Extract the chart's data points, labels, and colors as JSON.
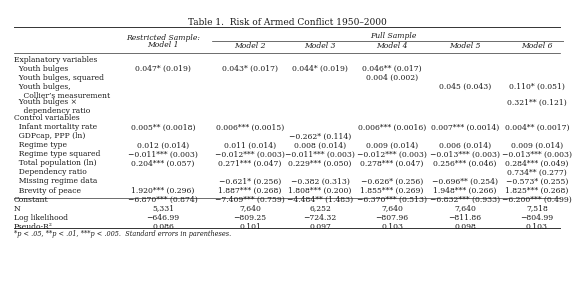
{
  "title": "Table 1.  Risk of Armed Conflict 1950–2000",
  "col_headers_line1": [
    "Restricted Sample:",
    "Full Sample",
    "",
    "",
    "",
    ""
  ],
  "col_headers_line2": [
    "Model 1",
    "Model 2",
    "Model 3",
    "Model 4",
    "Model 5",
    "Model 6"
  ],
  "rows": [
    {
      "label": "Explanatory variables",
      "indent": 0,
      "section": true,
      "values": [
        "",
        "",
        "",
        "",
        "",
        ""
      ]
    },
    {
      "label": "  Youth bulges",
      "indent": 0,
      "section": false,
      "values": [
        "0.047* (0.019)",
        "0.043* (0.017)",
        "0.044* (0.019)",
        "0.046** (0.017)",
        "",
        ""
      ]
    },
    {
      "label": "  Youth bulges, squared",
      "indent": 0,
      "section": false,
      "values": [
        "",
        "",
        "",
        "0.004 (0.002)",
        "",
        ""
      ]
    },
    {
      "label": "  Youth bulges,",
      "indent": 0,
      "section": false,
      "values": [
        "",
        "",
        "",
        "",
        "0.045 (0.043)",
        "0.110* (0.051)"
      ]
    },
    {
      "label": "    Collier’s measurement",
      "indent": 0,
      "section": false,
      "values": [
        "",
        "",
        "",
        "",
        "",
        ""
      ]
    },
    {
      "label": "  Youth bulges ×",
      "indent": 0,
      "section": false,
      "values": [
        "",
        "",
        "",
        "",
        "",
        "0.321** (0.121)"
      ]
    },
    {
      "label": "    dependency ratio",
      "indent": 0,
      "section": false,
      "values": [
        "",
        "",
        "",
        "",
        "",
        ""
      ]
    },
    {
      "label": "Control variables",
      "indent": 0,
      "section": true,
      "values": [
        "",
        "",
        "",
        "",
        "",
        ""
      ]
    },
    {
      "label": "  Infant mortality rate",
      "indent": 0,
      "section": false,
      "values": [
        "0.005** (0.0018)",
        "0.006*** (0.0015)",
        "",
        "0.006*** (0.0016)",
        "0.007*** (0.0014)",
        "0.004** (0.0017)"
      ]
    },
    {
      "label": "  GDPcap, PPP (ln)",
      "indent": 0,
      "section": false,
      "values": [
        "",
        "",
        "−0.262* (0.114)",
        "",
        "",
        ""
      ]
    },
    {
      "label": "  Regime type",
      "indent": 0,
      "section": false,
      "values": [
        "0.012 (0.014)",
        "0.011 (0.014)",
        "0.008 (0.014)",
        "0.009 (0.014)",
        "0.006 (0.014)",
        "0.009 (0.014)"
      ]
    },
    {
      "label": "  Regime type squared",
      "indent": 0,
      "section": false,
      "values": [
        "−0.011*** (0.003)",
        "−0.012*** (0.003)",
        "−0.011*** (0.003)",
        "−0.012*** (0.003)",
        "−0.013*** (0.003)",
        "−0.013*** (0.003)"
      ]
    },
    {
      "label": "  Total population (ln)",
      "indent": 0,
      "section": false,
      "values": [
        "0.204*** (0.057)",
        "0.271*** (0.047)",
        "0.229*** (0.050)",
        "0.278*** (0.047)",
        "0.256*** (0.046)",
        "0.284*** (0.049)"
      ]
    },
    {
      "label": "  Dependency ratio",
      "indent": 0,
      "section": false,
      "values": [
        "",
        "",
        "",
        "",
        "",
        "0.734** (0.277)"
      ]
    },
    {
      "label": "  Missing regime data",
      "indent": 0,
      "section": false,
      "values": [
        "",
        "−0.621* (0.256)",
        "−0.382 (0.313)",
        "−0.626* (0.256)",
        "−0.696** (0.254)",
        "−0.573* (0.255)"
      ]
    },
    {
      "label": "  Brevity of peace",
      "indent": 0,
      "section": false,
      "values": [
        "1.920*** (0.296)",
        "1.887*** (0.268)",
        "1.808*** (0.200)",
        "1.855*** (0.269)",
        "1.948*** (0.266)",
        "1.825*** (0.268)"
      ]
    },
    {
      "label": "Constant",
      "indent": 0,
      "section": false,
      "values": [
        "−6.870*** (0.874)",
        "−7.409*** (0.759)",
        "−4.484** (1.483)",
        "−6.370*** (0.513)",
        "−6.832*** (0.933)",
        "−6.200*** (0.499)"
      ]
    },
    {
      "label": "N",
      "indent": 0,
      "section": false,
      "stat": true,
      "values": [
        "5,331",
        "7,640",
        "6,252",
        "7,640",
        "7,640",
        "7,518"
      ]
    },
    {
      "label": "Log likelihood",
      "indent": 0,
      "section": false,
      "stat": true,
      "values": [
        "−646.99",
        "−809.25",
        "−724.32",
        "−807.96",
        "−811.86",
        "−804.99"
      ]
    },
    {
      "label": "Pseudo-R²",
      "indent": 0,
      "section": false,
      "stat": true,
      "values": [
        "0.086",
        "0.101",
        "0.097",
        "0.103",
        "0.098",
        "0.103"
      ]
    }
  ],
  "footnote": "*p < .05, **p < .01, ***p < .005.  Standard errors in parentheses.",
  "background_color": "#ffffff",
  "text_color": "#1a1a1a",
  "font_size": 5.5,
  "title_font_size": 6.5
}
